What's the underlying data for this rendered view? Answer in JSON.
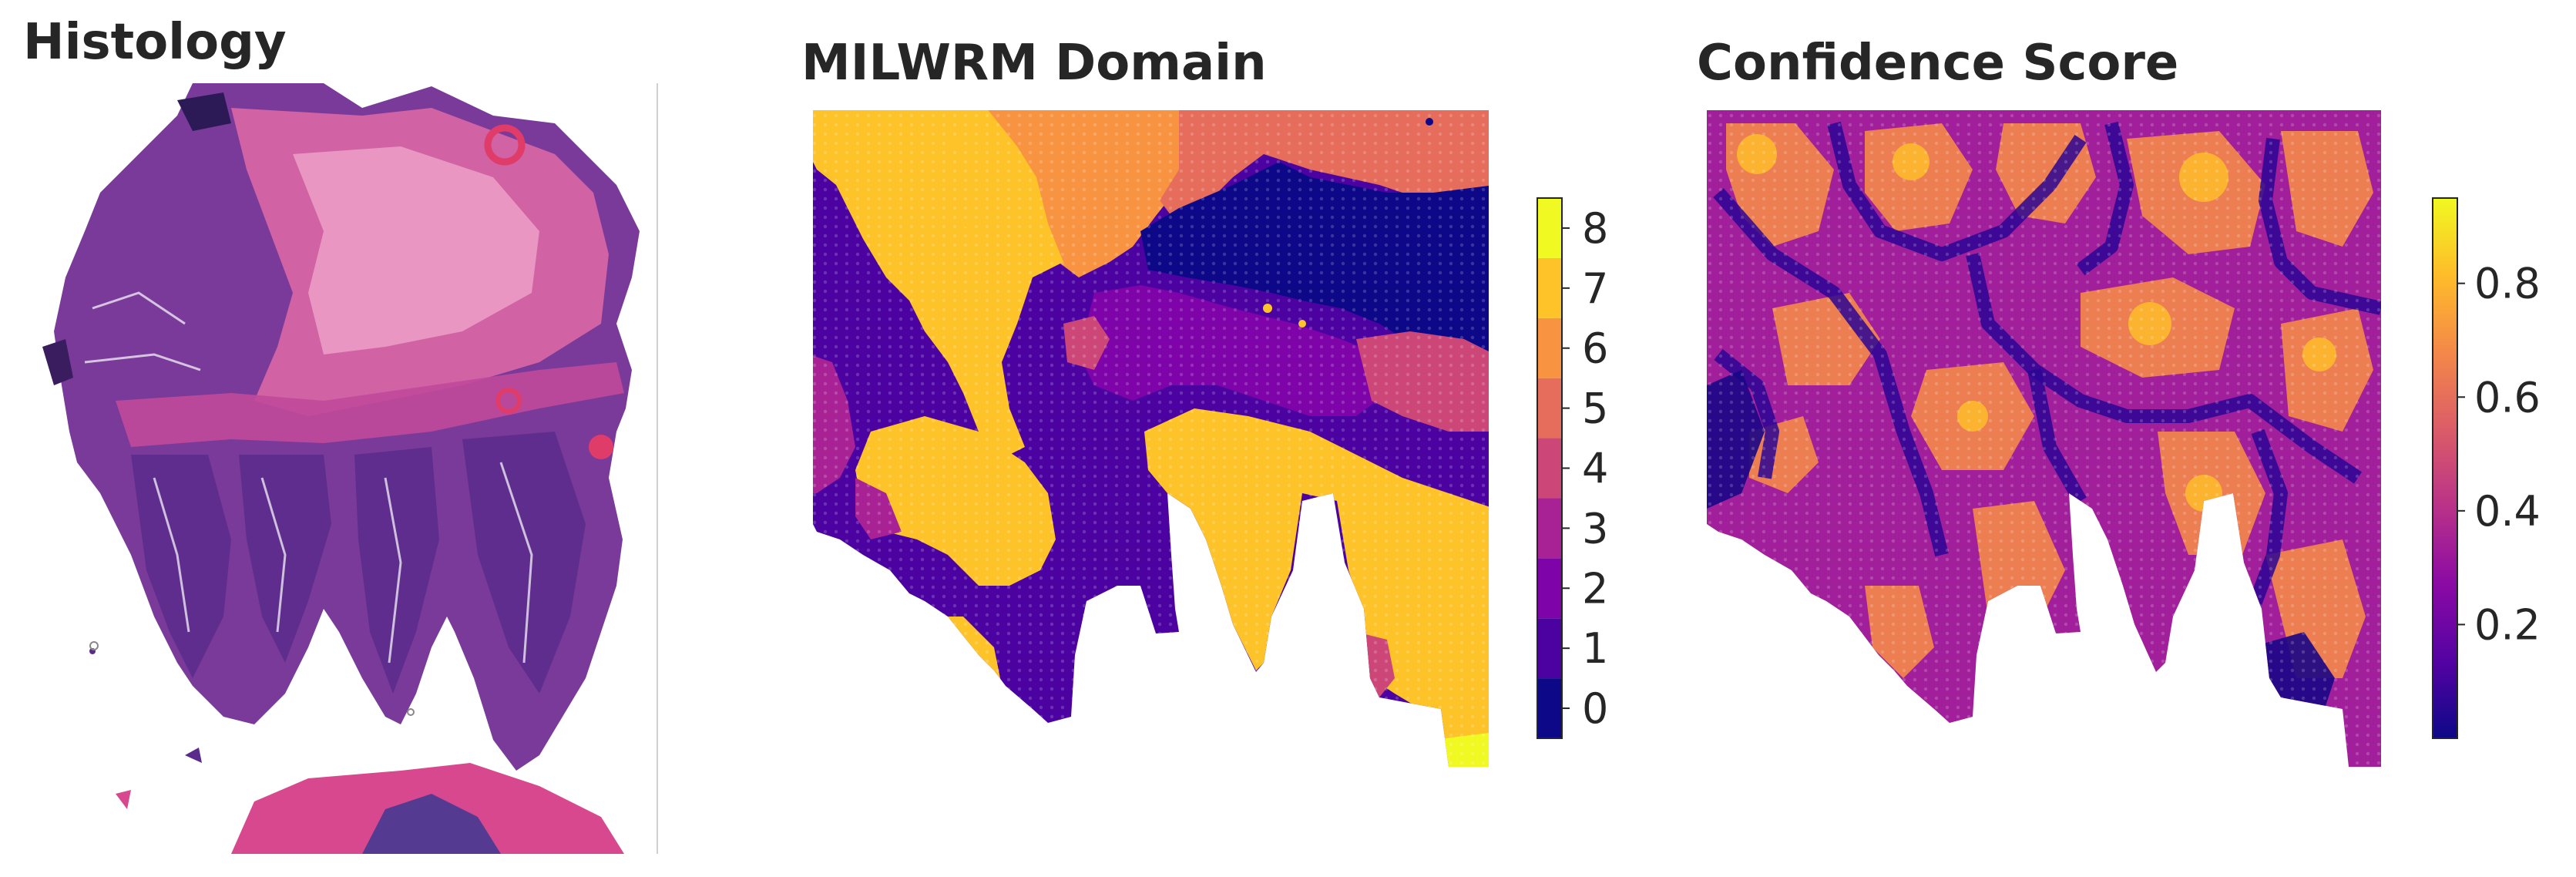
{
  "panels": {
    "histology": {
      "title": "Histology"
    },
    "domain": {
      "title": "MILWRM Domain"
    },
    "confidence": {
      "title": "Confidence Score"
    }
  },
  "colors": {
    "domain_palette": [
      "#0d0887",
      "#41049d",
      "#6a00a8",
      "#8f0da4",
      "#b12a90",
      "#cc4778",
      "#e16462",
      "#f2844b",
      "#fca636",
      "#fbd524",
      "#f0f921"
    ],
    "domain_levels": [
      "#0d0887",
      "#4c02a1",
      "#7e03a8",
      "#a82296",
      "#cc4778",
      "#e66c5c",
      "#f89441",
      "#fdc328",
      "#f0f921"
    ],
    "confidence_cmap": [
      "#0d0887",
      "#5402a3",
      "#8b0aa5",
      "#b93289",
      "#db5c68",
      "#f48849",
      "#febc2a",
      "#f0f921"
    ],
    "histology_palette": [
      "#5b2b8c",
      "#7a3a9a",
      "#c04a9a",
      "#e0609a",
      "#f2a6c8",
      "#ffffff"
    ]
  },
  "chart_data": [
    {
      "type": "image",
      "title": "Histology"
    },
    {
      "type": "heatmap",
      "title": "MILWRM Domain",
      "colorbar": {
        "ticks": [
          0,
          1,
          2,
          3,
          4,
          5,
          6,
          7,
          8
        ],
        "range": [
          -0.5,
          8.5
        ],
        "discrete": true
      },
      "domains": [
        {
          "id": 7,
          "region": "upper-left"
        },
        {
          "id": 6,
          "region": "top-center"
        },
        {
          "id": 5,
          "region": "top-right"
        },
        {
          "id": 0,
          "region": "upper-right"
        },
        {
          "id": 1,
          "region": "left and center"
        },
        {
          "id": 2,
          "region": "center"
        },
        {
          "id": 3,
          "region": "left edge"
        },
        {
          "id": 4,
          "region": "scattered"
        },
        {
          "id": 8,
          "region": "bottom-right corner"
        }
      ]
    },
    {
      "type": "heatmap",
      "title": "Confidence Score",
      "colorbar": {
        "ticks": [
          0.2,
          0.4,
          0.6,
          0.8
        ],
        "range": [
          0.0,
          0.95
        ]
      }
    }
  ]
}
